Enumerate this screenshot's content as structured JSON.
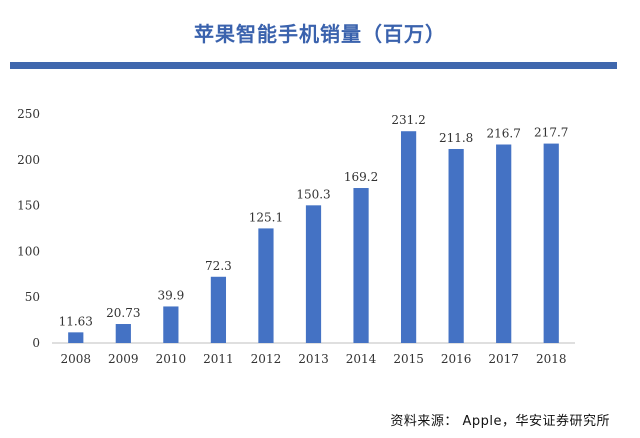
{
  "header": {
    "title": "苹果智能手机销量（百万）"
  },
  "colors": {
    "title": "#3a62ad",
    "rule": "#3f67ad",
    "bar": "#4472c4",
    "axis": "#bfbfbf"
  },
  "chart_data": {
    "type": "bar",
    "title": "苹果智能手机销量（百万）",
    "xlabel": "",
    "ylabel": "",
    "categories": [
      "2008",
      "2009",
      "2010",
      "2011",
      "2012",
      "2013",
      "2014",
      "2015",
      "2016",
      "2017",
      "2018"
    ],
    "values": [
      11.63,
      20.73,
      39.9,
      72.3,
      125.1,
      150.3,
      169.2,
      231.2,
      211.8,
      216.7,
      217.7
    ],
    "data_labels": [
      "11.63",
      "20.73",
      "39.9",
      "72.3",
      "125.1",
      "150.3",
      "169.2",
      "231.2",
      "211.8",
      "216.7",
      "217.7"
    ],
    "ylim": [
      0,
      250
    ],
    "yticks": [
      0,
      50,
      100,
      150,
      200,
      250
    ],
    "grid": false,
    "legend": "none"
  },
  "footer": {
    "source": "资料来源：  Apple，华安证券研究所"
  }
}
